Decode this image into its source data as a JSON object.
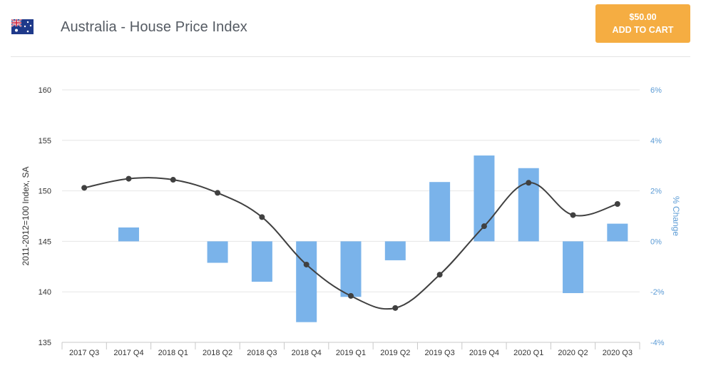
{
  "header": {
    "title": "Australia - House Price Index",
    "flag_icon": "australia-flag-icon",
    "cart": {
      "price": "$50.00",
      "label": "ADD TO CART",
      "color": "#f5ad42"
    }
  },
  "chart_data": {
    "type": "bar+line",
    "categories": [
      "2017 Q3",
      "2017 Q4",
      "2018 Q1",
      "2018 Q2",
      "2018 Q3",
      "2018 Q4",
      "2019 Q1",
      "2019 Q2",
      "2019 Q3",
      "2019 Q4",
      "2020 Q1",
      "2020 Q2",
      "2020 Q3"
    ],
    "line_series": {
      "axis": "left",
      "color": "#404040",
      "values": [
        150.3,
        151.2,
        151.1,
        149.8,
        147.4,
        142.7,
        139.6,
        138.4,
        141.7,
        146.5,
        150.8,
        147.6,
        148.7
      ]
    },
    "bar_series": {
      "axis": "right",
      "color": "#7ab3ea",
      "values": [
        null,
        0.55,
        0.0,
        -0.85,
        -1.6,
        -3.2,
        -2.2,
        -0.75,
        2.35,
        3.4,
        2.9,
        -2.05,
        0.7
      ]
    },
    "y_left": {
      "label": "2011-2012=100 Index, SA",
      "ticks": [
        "160",
        "155",
        "150",
        "145",
        "140",
        "135"
      ],
      "range": [
        135,
        160
      ]
    },
    "y_right": {
      "label": "% Change",
      "ticks": [
        "6%",
        "4%",
        "2%",
        "0%",
        "-2%",
        "-4%"
      ],
      "range": [
        -4,
        6
      ],
      "color": "#5b9bd5"
    },
    "grid": true,
    "legend": "none"
  }
}
